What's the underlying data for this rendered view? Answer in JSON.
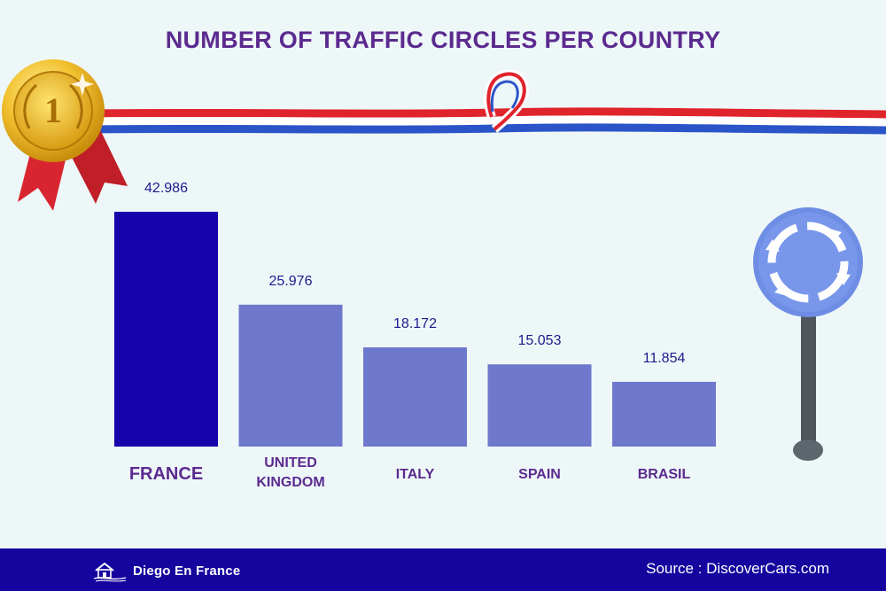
{
  "title": "NUMBER OF TRAFFIC CIRCLES PER COUNTRY",
  "footer": {
    "brand": "Diego En France",
    "source": "Source : DiscoverCars.com",
    "background": "#16049e"
  },
  "icons": {
    "medal": "gold-medal-number-1-icon",
    "ribbon": "french-flag-ribbon",
    "sign": "roundabout-sign-icon",
    "logo": "house-logo-icon"
  },
  "medal_number": "1",
  "colors": {
    "highlight_bar": "#1804ab",
    "bar": "#6e78cc",
    "title": "#5b2a8f",
    "value_label": "#1f1a8c",
    "background": "#eef7f8"
  },
  "chart_data": {
    "type": "bar",
    "title": "NUMBER OF TRAFFIC CIRCLES PER COUNTRY",
    "categories": [
      {
        "lines": [
          "FRANCE"
        ]
      },
      {
        "lines": [
          "UNITED",
          "KINGDOM"
        ]
      },
      {
        "lines": [
          "ITALY"
        ]
      },
      {
        "lines": [
          "SPAIN"
        ]
      },
      {
        "lines": [
          "BRASIL"
        ]
      }
    ],
    "values": [
      42986,
      25976,
      18172,
      15053,
      11854
    ],
    "value_labels": [
      "42.986",
      "25.976",
      "18.172",
      "15.053",
      "11.854"
    ],
    "highlight_index": 0,
    "ylim": [
      0,
      42986
    ],
    "grid": false,
    "legend": "none"
  }
}
